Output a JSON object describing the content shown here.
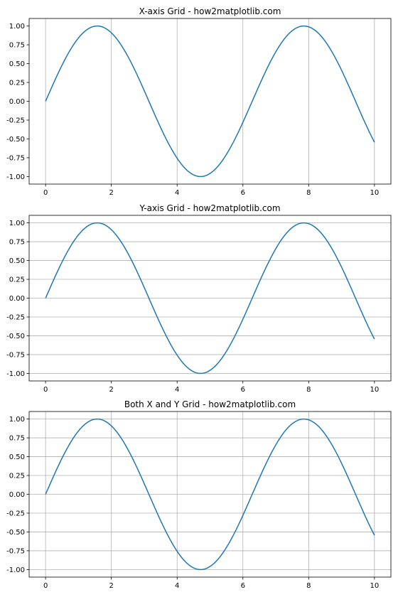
{
  "chart_data": [
    {
      "type": "line",
      "title": "X-axis Grid - how2matplotlib.com",
      "xlabel": "",
      "ylabel": "",
      "xlim": [
        -0.5,
        10.5
      ],
      "ylim": [
        -1.1,
        1.1
      ],
      "xticks": [
        0,
        2,
        4,
        6,
        8,
        10
      ],
      "xtick_labels": [
        "0",
        "2",
        "4",
        "6",
        "8",
        "10"
      ],
      "yticks": [
        1.0,
        0.75,
        0.5,
        0.25,
        0.0,
        -0.25,
        -0.5,
        -0.75,
        -1.0
      ],
      "ytick_labels": [
        "1.00",
        "0.75",
        "0.50",
        "0.25",
        "0.00",
        "-0.25",
        "-0.50",
        "-0.75",
        "-1.00"
      ],
      "grid": "x",
      "series": [
        {
          "color": "#1f77b4",
          "x": [
            0,
            0.5,
            1,
            1.5,
            1.571,
            2,
            2.5,
            3,
            3.5,
            4,
            4.5,
            4.712,
            5,
            5.5,
            6,
            6.5,
            7,
            7.5,
            7.854,
            8,
            8.5,
            9,
            9.5,
            10
          ],
          "y": [
            0.0,
            0.479,
            0.841,
            0.997,
            1.0,
            0.909,
            0.598,
            0.141,
            -0.351,
            -0.757,
            -0.978,
            -1.0,
            -0.959,
            -0.706,
            -0.279,
            0.215,
            0.657,
            0.938,
            1.0,
            0.989,
            0.798,
            0.412,
            -0.075,
            -0.544
          ]
        }
      ]
    },
    {
      "type": "line",
      "title": "Y-axis Grid - how2matplotlib.com",
      "xlabel": "",
      "ylabel": "",
      "xlim": [
        -0.5,
        10.5
      ],
      "ylim": [
        -1.1,
        1.1
      ],
      "xticks": [
        0,
        2,
        4,
        6,
        8,
        10
      ],
      "xtick_labels": [
        "0",
        "2",
        "4",
        "6",
        "8",
        "10"
      ],
      "yticks": [
        1.0,
        0.75,
        0.5,
        0.25,
        0.0,
        -0.25,
        -0.5,
        -0.75,
        -1.0
      ],
      "ytick_labels": [
        "1.00",
        "0.75",
        "0.50",
        "0.25",
        "0.00",
        "-0.25",
        "-0.50",
        "-0.75",
        "-1.00"
      ],
      "grid": "y",
      "series": [
        {
          "color": "#1f77b4",
          "x": [
            0,
            0.5,
            1,
            1.5,
            1.571,
            2,
            2.5,
            3,
            3.5,
            4,
            4.5,
            4.712,
            5,
            5.5,
            6,
            6.5,
            7,
            7.5,
            7.854,
            8,
            8.5,
            9,
            9.5,
            10
          ],
          "y": [
            0.0,
            0.479,
            0.841,
            0.997,
            1.0,
            0.909,
            0.598,
            0.141,
            -0.351,
            -0.757,
            -0.978,
            -1.0,
            -0.959,
            -0.706,
            -0.279,
            0.215,
            0.657,
            0.938,
            1.0,
            0.989,
            0.798,
            0.412,
            -0.075,
            -0.544
          ]
        }
      ]
    },
    {
      "type": "line",
      "title": "Both X and Y Grid - how2matplotlib.com",
      "xlabel": "",
      "ylabel": "",
      "xlim": [
        -0.5,
        10.5
      ],
      "ylim": [
        -1.1,
        1.1
      ],
      "xticks": [
        0,
        2,
        4,
        6,
        8,
        10
      ],
      "xtick_labels": [
        "0",
        "2",
        "4",
        "6",
        "8",
        "10"
      ],
      "yticks": [
        1.0,
        0.75,
        0.5,
        0.25,
        0.0,
        -0.25,
        -0.5,
        -0.75,
        -1.0
      ],
      "ytick_labels": [
        "1.00",
        "0.75",
        "0.50",
        "0.25",
        "0.00",
        "-0.25",
        "-0.50",
        "-0.75",
        "-1.00"
      ],
      "grid": "both",
      "series": [
        {
          "color": "#1f77b4",
          "x": [
            0,
            0.5,
            1,
            1.5,
            1.571,
            2,
            2.5,
            3,
            3.5,
            4,
            4.5,
            4.712,
            5,
            5.5,
            6,
            6.5,
            7,
            7.5,
            7.854,
            8,
            8.5,
            9,
            9.5,
            10
          ],
          "y": [
            0.0,
            0.479,
            0.841,
            0.997,
            1.0,
            0.909,
            0.598,
            0.141,
            -0.351,
            -0.757,
            -0.978,
            -1.0,
            -0.959,
            -0.706,
            -0.279,
            0.215,
            0.657,
            0.938,
            1.0,
            0.989,
            0.798,
            0.412,
            -0.075,
            -0.544
          ]
        }
      ]
    }
  ]
}
